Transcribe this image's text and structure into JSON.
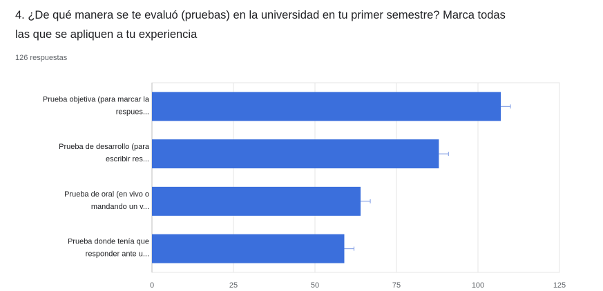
{
  "question": {
    "title_line1": "4. ¿De qué manera se te evaluó (pruebas) en la universidad en tu primer semestre? Marca todas",
    "title_line2": "las que se apliquen a tu experiencia",
    "responses": "126 respuestas"
  },
  "colors": {
    "bar": "#3b6fdc",
    "error": "#8fa9e8",
    "grid": "#e6e6e6",
    "axis": "#bdbdbd"
  },
  "chart_data": {
    "type": "bar",
    "orientation": "horizontal",
    "categories": [
      [
        "Prueba objetiva (para marcar la",
        "respues..."
      ],
      [
        "Prueba de desarrollo (para",
        "escribir res..."
      ],
      [
        "Prueba de oral (en vivo o",
        "mandando un v..."
      ],
      [
        "Prueba donde tenía que",
        "responder ante u..."
      ]
    ],
    "values": [
      107,
      88,
      64,
      59
    ],
    "xlim": [
      0,
      125
    ],
    "xticks": [
      0,
      25,
      50,
      75,
      100,
      125
    ],
    "grid": true,
    "legend": "none"
  }
}
